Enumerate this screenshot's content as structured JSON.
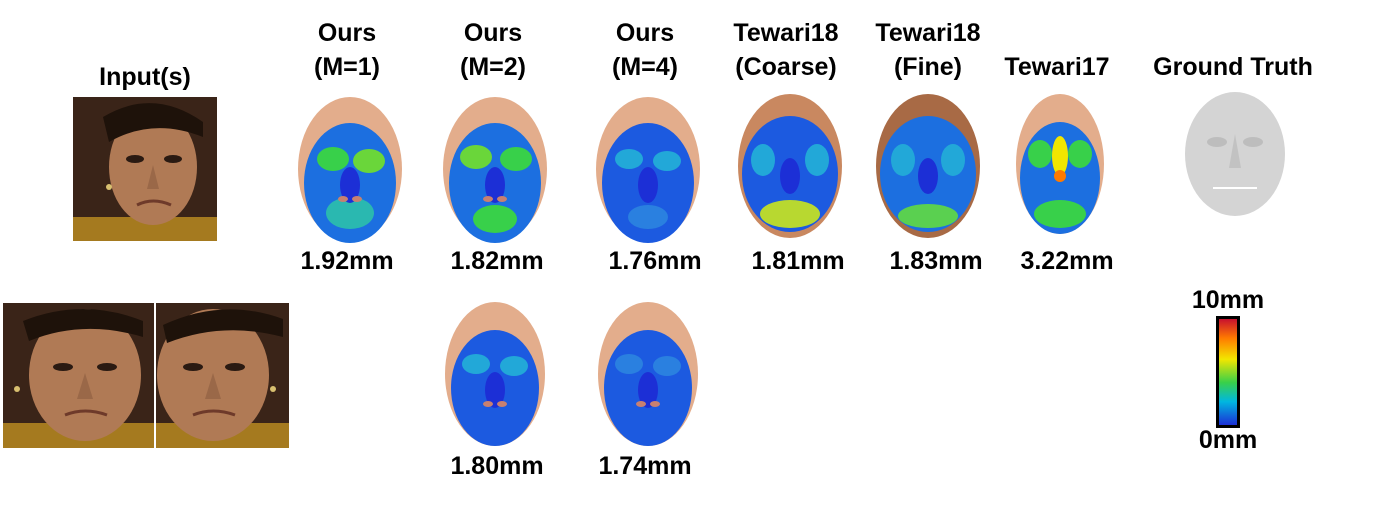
{
  "headers": {
    "input": "Input(s)",
    "ours1_a": "Ours",
    "ours1_b": "(M=1)",
    "ours2_a": "Ours",
    "ours2_b": "(M=2)",
    "ours4_a": "Ours",
    "ours4_b": "(M=4)",
    "tew18c_a": "Tewari18",
    "tew18c_b": "(Coarse)",
    "tew18f_a": "Tewari18",
    "tew18f_b": "(Fine)",
    "tew17": "Tewari17",
    "gt": "Ground Truth"
  },
  "row1_errors": [
    "1.92mm",
    "1.82mm",
    "1.76mm",
    "1.81mm",
    "1.83mm",
    "3.22mm"
  ],
  "row2_errors": [
    "1.80mm",
    "1.74mm"
  ],
  "colorbar": {
    "max_label": "10mm",
    "min_label": "0mm"
  },
  "colors": {
    "skin": "#e3ad8c",
    "hair": "#2a1a10",
    "low_error": "#1c2fd6",
    "high_error": "#c8102e",
    "gt_mesh": "#d4d4d4"
  }
}
